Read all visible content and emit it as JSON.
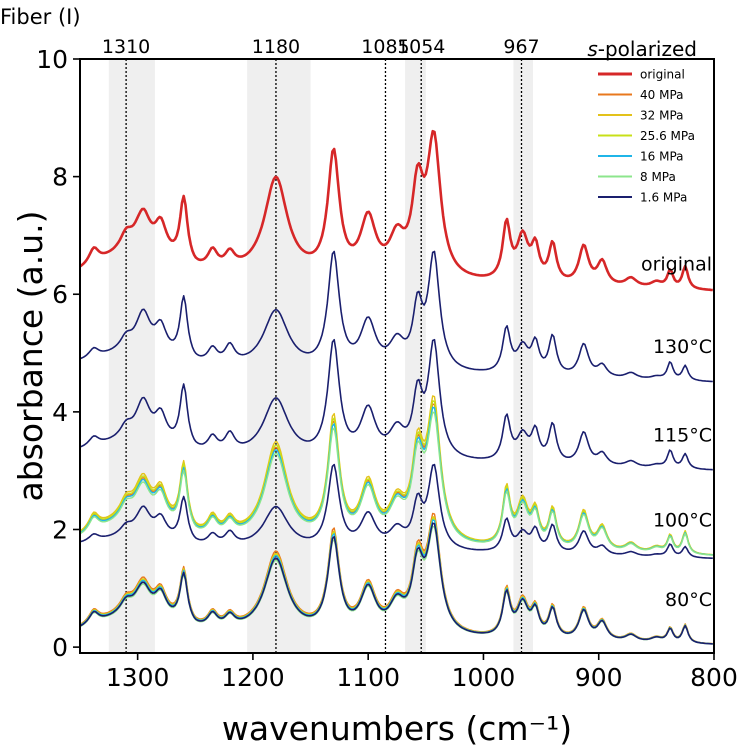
{
  "chart_data": {
    "type": "line",
    "title": "Fiber (I)",
    "xlabel": "wavenumbers (cm⁻¹)",
    "ylabel": "absorbance (a.u.)",
    "xlim": [
      1350,
      800
    ],
    "ylim": [
      -0.1,
      10
    ],
    "x_reversed": true,
    "xticks": [
      1300,
      1200,
      1100,
      1000,
      900,
      800
    ],
    "yticks": [
      0,
      2,
      4,
      6,
      8,
      10
    ],
    "grid": false,
    "legend": {
      "placement": "top-right",
      "title_prefix": "s",
      "title_suffix": "-polarized",
      "entries": [
        {
          "name": "original",
          "color": "#d62728"
        },
        {
          "name": "40 MPa",
          "color": "#e8781e"
        },
        {
          "name": "32 MPa",
          "color": "#e3c21a"
        },
        {
          "name": "25.6 MPa",
          "color": "#c8e018"
        },
        {
          "name": "16 MPa",
          "color": "#1fb5e8"
        },
        {
          "name": "8 MPa",
          "color": "#8ce68c"
        },
        {
          "name": "1.6 MPa",
          "color": "#1a1f6e"
        }
      ]
    },
    "peak_markers": [
      {
        "label": "1310",
        "x": 1310
      },
      {
        "label": "1180",
        "x": 1180
      },
      {
        "label": "1085",
        "x": 1085
      },
      {
        "label": "1054",
        "x": 1054
      },
      {
        "label": "967",
        "x": 967
      }
    ],
    "shaded_bands": [
      [
        1325,
        1285
      ],
      [
        1205,
        1150
      ],
      [
        1068,
        1050
      ],
      [
        974,
        957
      ]
    ],
    "temperature_labels": [
      {
        "label": "original",
        "y": 6.4
      },
      {
        "label": "130°C",
        "y": 5.0
      },
      {
        "label": "115°C",
        "y": 3.5
      },
      {
        "label": "100°C",
        "y": 2.05
      },
      {
        "label": "80°C",
        "y": 0.7
      }
    ],
    "series": [
      {
        "name": "original",
        "color": "#d62728",
        "width": 2.6,
        "offset": 6.0,
        "profile": "base",
        "scale": 1.0
      },
      {
        "name": "130°C 1.6 MPa",
        "color": "#1a1f6e",
        "width": 1.6,
        "offset": 4.5,
        "profile": "annealed",
        "scale": 1.0
      },
      {
        "name": "115°C 1.6 MPa",
        "color": "#1a1f6e",
        "width": 1.6,
        "offset": 3.0,
        "profile": "annealed",
        "scale": 1.0
      },
      {
        "name": "100°C 40 MPa",
        "color": "#e8781e",
        "width": 1.4,
        "offset": 1.5,
        "profile": "base",
        "scale": 0.95
      },
      {
        "name": "100°C 32 MPa",
        "color": "#e3c21a",
        "width": 1.4,
        "offset": 1.5,
        "profile": "base",
        "scale": 1.0
      },
      {
        "name": "100°C 25.6 MPa",
        "color": "#c8e018",
        "width": 1.4,
        "offset": 1.5,
        "profile": "base",
        "scale": 0.97
      },
      {
        "name": "100°C 16 MPa",
        "color": "#1fb5e8",
        "width": 1.4,
        "offset": 1.5,
        "profile": "base",
        "scale": 0.93
      },
      {
        "name": "100°C 8 MPa",
        "color": "#8ce68c",
        "width": 1.4,
        "offset": 1.5,
        "profile": "base",
        "scale": 0.9
      },
      {
        "name": "100°C 1.6 MPa",
        "color": "#1a1f6e",
        "width": 1.6,
        "offset": 1.5,
        "profile": "annealed",
        "scale": 0.72
      },
      {
        "name": "80°C 40 MPa",
        "color": "#e8781e",
        "width": 1.4,
        "offset": 0.0,
        "profile": "base",
        "scale": 0.82
      },
      {
        "name": "80°C 32 MPa",
        "color": "#e3c21a",
        "width": 1.4,
        "offset": 0.0,
        "profile": "base",
        "scale": 0.8
      },
      {
        "name": "80°C 25.6 MPa",
        "color": "#c8e018",
        "width": 1.4,
        "offset": 0.0,
        "profile": "base",
        "scale": 0.79
      },
      {
        "name": "80°C 16 MPa",
        "color": "#1fb5e8",
        "width": 1.4,
        "offset": 0.0,
        "profile": "base",
        "scale": 0.78
      },
      {
        "name": "80°C 8 MPa",
        "color": "#8ce68c",
        "width": 1.4,
        "offset": 0.0,
        "profile": "base",
        "scale": 0.74
      },
      {
        "name": "80°C 1.6 MPa",
        "color": "#1a1f6e",
        "width": 1.6,
        "offset": 0.0,
        "profile": "base",
        "scale": 0.76
      }
    ],
    "profiles": {
      "base": {
        "baseline": [
          [
            1350,
            0.4
          ],
          [
            1300,
            0.8
          ],
          [
            1250,
            0.35
          ],
          [
            1150,
            0.25
          ],
          [
            1000,
            0.15
          ],
          [
            800,
            0.05
          ]
        ],
        "peaks": [
          [
            1338,
            0.25,
            5
          ],
          [
            1310,
            0.25,
            6
          ],
          [
            1295,
            0.55,
            7
          ],
          [
            1280,
            0.5,
            6
          ],
          [
            1260,
            1.1,
            4
          ],
          [
            1235,
            0.3,
            5
          ],
          [
            1220,
            0.25,
            5
          ],
          [
            1180,
            1.65,
            12
          ],
          [
            1130,
            2.05,
            6
          ],
          [
            1100,
            0.95,
            8
          ],
          [
            1075,
            0.6,
            8
          ],
          [
            1057,
            1.4,
            6
          ],
          [
            1043,
            2.3,
            7
          ],
          [
            980,
            0.95,
            4
          ],
          [
            966,
            0.75,
            6
          ],
          [
            955,
            0.55,
            4
          ],
          [
            940,
            0.65,
            4
          ],
          [
            913,
            0.65,
            5
          ],
          [
            897,
            0.4,
            5
          ],
          [
            872,
            0.15,
            6
          ],
          [
            850,
            0.1,
            6
          ],
          [
            838,
            0.3,
            3
          ],
          [
            825,
            0.38,
            3
          ]
        ]
      },
      "annealed": {
        "baseline": [
          [
            1350,
            0.35
          ],
          [
            1300,
            0.55
          ],
          [
            1250,
            0.25
          ],
          [
            1150,
            0.15
          ],
          [
            1000,
            0.1
          ],
          [
            800,
            0.0
          ]
        ],
        "peaks": [
          [
            1338,
            0.15,
            5
          ],
          [
            1310,
            0.2,
            6
          ],
          [
            1295,
            0.6,
            7
          ],
          [
            1280,
            0.45,
            6
          ],
          [
            1260,
            1.05,
            4
          ],
          [
            1235,
            0.25,
            5
          ],
          [
            1220,
            0.3,
            5
          ],
          [
            1180,
            1.0,
            13
          ],
          [
            1130,
            1.95,
            6
          ],
          [
            1100,
            0.8,
            8
          ],
          [
            1075,
            0.45,
            8
          ],
          [
            1057,
            1.0,
            5
          ],
          [
            1043,
            1.95,
            6
          ],
          [
            980,
            0.75,
            4
          ],
          [
            966,
            0.45,
            6
          ],
          [
            955,
            0.5,
            4
          ],
          [
            940,
            0.65,
            4
          ],
          [
            913,
            0.55,
            5
          ],
          [
            897,
            0.2,
            5
          ],
          [
            872,
            0.1,
            6
          ],
          [
            850,
            0.05,
            6
          ],
          [
            838,
            0.3,
            3
          ],
          [
            825,
            0.25,
            3
          ]
        ]
      }
    }
  }
}
